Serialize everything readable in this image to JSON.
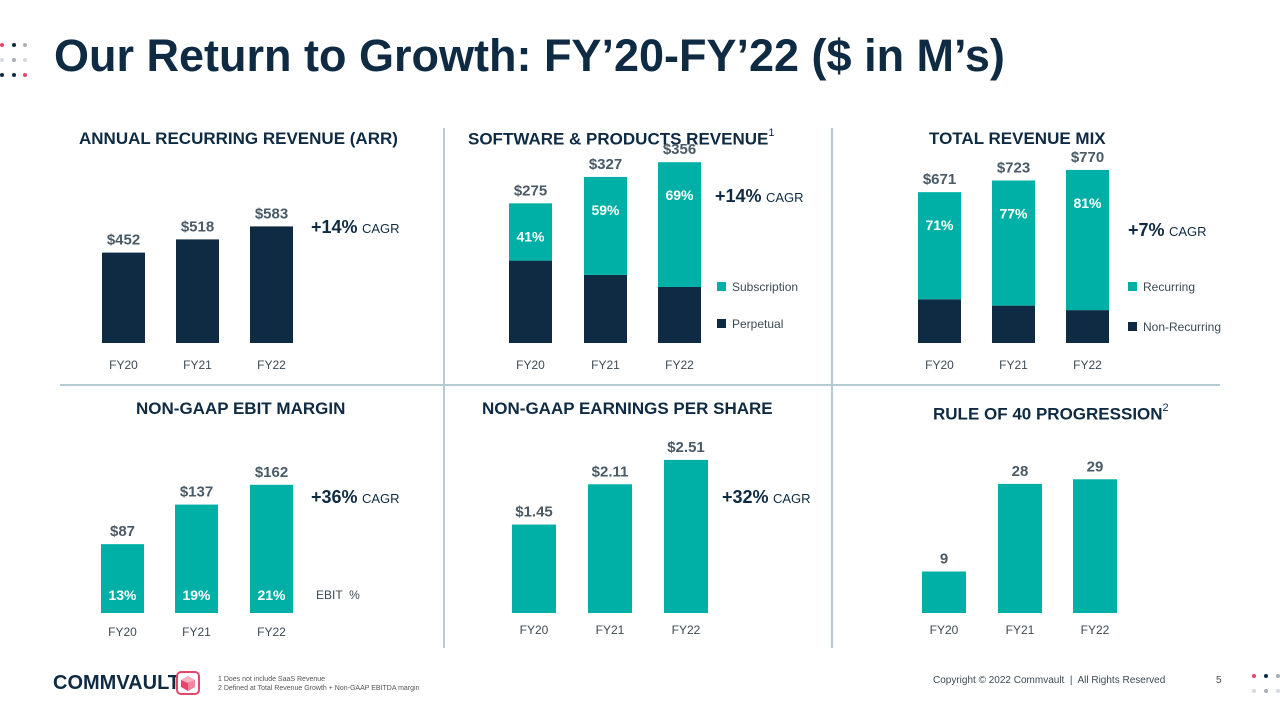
{
  "title": "Our Return to Growth: FY’20-FY’22 ($ in M’s)",
  "colors": {
    "navy": "#0e2b43",
    "teal": "#00b0a6",
    "pink": "#e8456b",
    "grey_dot": "#a9b0b6",
    "light_dot": "#d6dade",
    "divider": "#b5cbd3",
    "label": "#4a5a66"
  },
  "panels": {
    "arr": {
      "title": "ANNUAL RECURRING REVENUE (ARR)",
      "cagr_value": "+14%",
      "cagr_label": "CAGR"
    },
    "software": {
      "title": "SOFTWARE & PRODUCTS REVENUE",
      "title_sup": "1",
      "cagr_value": "+14%",
      "cagr_label": "CAGR",
      "legend": [
        "Subscription",
        "Perpetual"
      ]
    },
    "mix": {
      "title": "TOTAL REVENUE MIX",
      "cagr_value": "+7%",
      "cagr_label": "CAGR",
      "legend": [
        "Recurring",
        "Non-Recurring"
      ]
    },
    "ebit": {
      "title": "NON-GAAP EBIT MARGIN",
      "cagr_value": "+36%",
      "cagr_label": "CAGR",
      "side_label": "EBIT  %"
    },
    "eps": {
      "title": "NON-GAAP EARNINGS PER SHARE",
      "cagr_value": "+32%",
      "cagr_label": "CAGR"
    },
    "rule40": {
      "title": "RULE OF 40 PROGRESSION",
      "title_sup": "2"
    }
  },
  "chart_data": [
    {
      "id": "arr",
      "type": "bar",
      "title": "ANNUAL RECURRING REVENUE (ARR)",
      "categories": [
        "FY20",
        "FY21",
        "FY22"
      ],
      "values": [
        452,
        518,
        583
      ],
      "labels": [
        "$452",
        "$518",
        "$583"
      ],
      "ylim": [
        0,
        1000
      ],
      "annotation": "+14% CAGR",
      "color": "#0e2b43"
    },
    {
      "id": "software",
      "type": "bar",
      "stacked": true,
      "title": "SOFTWARE & PRODUCTS REVENUE",
      "categories": [
        "FY20",
        "FY21",
        "FY22"
      ],
      "totals": [
        275,
        327,
        356
      ],
      "labels": [
        "$275",
        "$327",
        "$356"
      ],
      "series": [
        {
          "name": "Perpetual",
          "share_pct": [
            59,
            41,
            31
          ],
          "color": "#0e2b43"
        },
        {
          "name": "Subscription",
          "share_pct": [
            41,
            59,
            69
          ],
          "color": "#00b0a6",
          "labels": [
            "41%",
            "59%",
            "69%"
          ]
        }
      ],
      "ylim": [
        0,
        510
      ],
      "annotation": "+14% CAGR"
    },
    {
      "id": "mix",
      "type": "bar",
      "stacked": true,
      "title": "TOTAL REVENUE MIX",
      "categories": [
        "FY20",
        "FY21",
        "FY22"
      ],
      "totals": [
        671,
        723,
        770
      ],
      "labels": [
        "$671",
        "$723",
        "$770"
      ],
      "series": [
        {
          "name": "Non-Recurring",
          "share_pct": [
            29,
            23,
            19
          ],
          "color": "#0e2b43"
        },
        {
          "name": "Recurring",
          "share_pct": [
            71,
            77,
            81
          ],
          "color": "#00b0a6",
          "labels": [
            "71%",
            "77%",
            "81%"
          ]
        }
      ],
      "ylim": [
        0,
        1130
      ],
      "annotation": "+7% CAGR"
    },
    {
      "id": "ebit",
      "type": "bar",
      "title": "NON-GAAP EBIT MARGIN",
      "categories": [
        "FY20",
        "FY21",
        "FY22"
      ],
      "values": [
        87,
        137,
        162
      ],
      "labels": [
        "$87",
        "$137",
        "$162"
      ],
      "inner_labels": [
        "13%",
        "19%",
        "21%"
      ],
      "ylim": [
        0,
        230
      ],
      "annotation": "+36% CAGR",
      "color": "#00b0a6"
    },
    {
      "id": "eps",
      "type": "bar",
      "title": "NON-GAAP EARNINGS PER SHARE",
      "categories": [
        "FY20",
        "FY21",
        "FY22"
      ],
      "values": [
        1.45,
        2.11,
        2.51
      ],
      "labels": [
        "$1.45",
        "$2.11",
        "$2.51"
      ],
      "ylim": [
        0,
        3.0
      ],
      "annotation": "+32% CAGR",
      "color": "#00b0a6"
    },
    {
      "id": "rule40",
      "type": "bar",
      "title": "RULE OF 40 PROGRESSION",
      "categories": [
        "FY20",
        "FY21",
        "FY22"
      ],
      "values": [
        9,
        28,
        29
      ],
      "labels": [
        "9",
        "28",
        "29"
      ],
      "ylim": [
        0,
        36
      ],
      "color": "#00b0a6"
    }
  ],
  "footer": {
    "logo_text": "COMMVAULT",
    "footnotes": [
      "1 Does not include SaaS Revenue",
      "2 Defined at Total Revenue Growth + Non-GAAP EBITDA margin"
    ],
    "copyright": "Copyright © 2022 Commvault  |  All Rights Reserved",
    "page_number": "5"
  }
}
